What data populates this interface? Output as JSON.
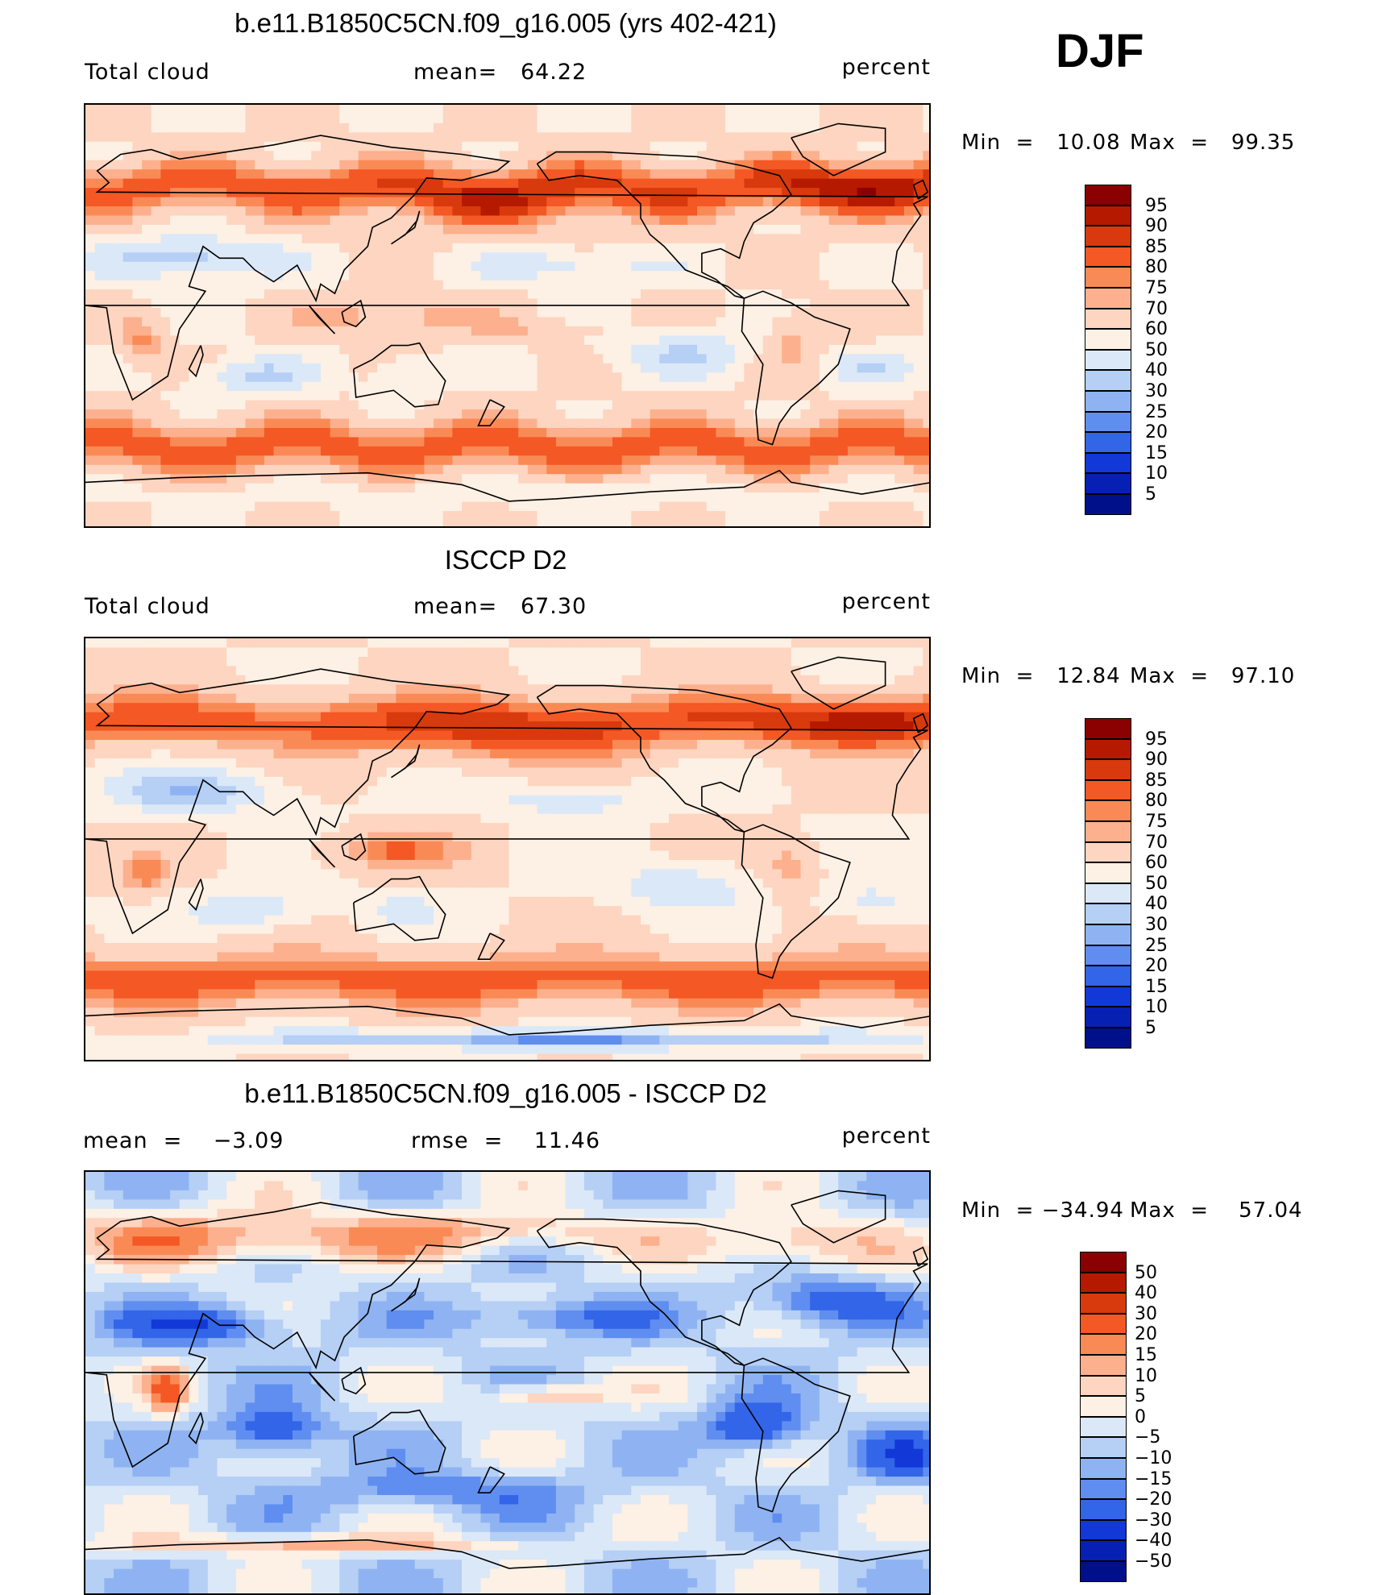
{
  "season": "DJF",
  "panels": [
    {
      "title": "b.e11.B1850C5CN.f09_g16.005 (yrs 402-421)",
      "left_label": "Total cloud",
      "center_label": "mean=   64.22",
      "units": "percent",
      "min_text": "Min  =   10.08",
      "max_text": "Max  =   99.35",
      "colorbar": {
        "labels": [
          "95",
          "90",
          "85",
          "80",
          "75",
          "70",
          "60",
          "50",
          "40",
          "30",
          "25",
          "20",
          "15",
          "10",
          "5"
        ],
        "colors": [
          "#8b0000",
          "#b51a00",
          "#d83a0d",
          "#f45824",
          "#fa8a55",
          "#fcb08e",
          "#fdd5c0",
          "#fdf0e4",
          "#dbe8f8",
          "#b5cff5",
          "#8fb3f2",
          "#5f8ef0",
          "#3365e8",
          "#1238d8",
          "#0620b4",
          "#00108a"
        ]
      },
      "field": "model"
    },
    {
      "title": "ISCCP D2",
      "left_label": "Total cloud",
      "center_label": "mean=   67.30",
      "units": "percent",
      "min_text": "Min  =   12.84",
      "max_text": "Max  =   97.10",
      "colorbar": {
        "labels": [
          "95",
          "90",
          "85",
          "80",
          "75",
          "70",
          "60",
          "50",
          "40",
          "30",
          "25",
          "20",
          "15",
          "10",
          "5"
        ],
        "colors": [
          "#8b0000",
          "#b51a00",
          "#d83a0d",
          "#f45824",
          "#fa8a55",
          "#fcb08e",
          "#fdd5c0",
          "#fdf0e4",
          "#dbe8f8",
          "#b5cff5",
          "#8fb3f2",
          "#5f8ef0",
          "#3365e8",
          "#1238d8",
          "#0620b4",
          "#00108a"
        ]
      },
      "field": "obs"
    },
    {
      "title": "b.e11.B1850C5CN.f09_g16.005 - ISCCP D2",
      "left_label": "mean  =    −3.09",
      "center_label": "rmse  =    11.46",
      "units": "percent",
      "min_text": "Min  = −34.94",
      "max_text": "Max  =    57.04",
      "colorbar": {
        "labels": [
          "50",
          "40",
          "30",
          "20",
          "15",
          "10",
          "5",
          "0",
          "−5",
          "−10",
          "−15",
          "−20",
          "−30",
          "−40",
          "−50"
        ],
        "colors": [
          "#8b0000",
          "#b51a00",
          "#d83a0d",
          "#f45824",
          "#fa8a55",
          "#fcb08e",
          "#fdd5c0",
          "#fdf0e4",
          "#dbe8f8",
          "#b5cff5",
          "#8fb3f2",
          "#5f8ef0",
          "#3365e8",
          "#1238d8",
          "#0620b4",
          "#00108a"
        ]
      },
      "field": "diff"
    }
  ]
}
